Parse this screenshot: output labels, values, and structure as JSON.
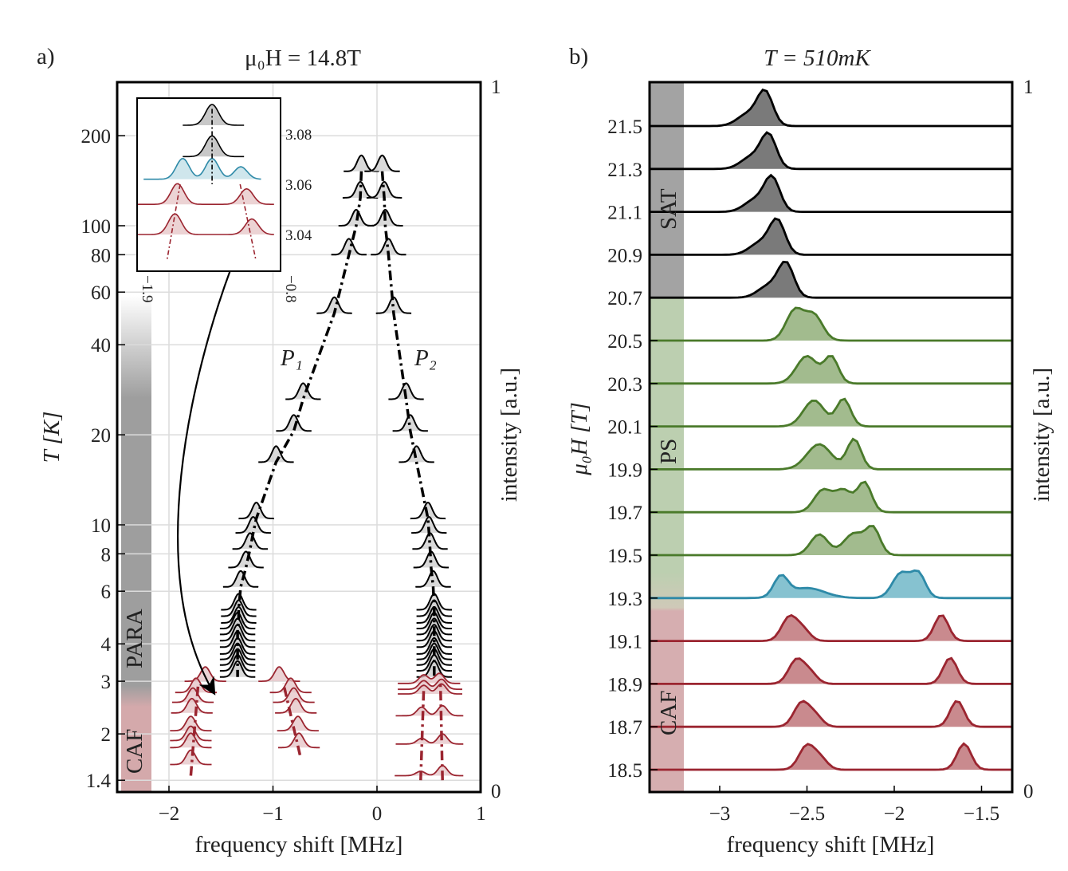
{
  "chart_data": [
    {
      "panel_label": "a)",
      "type": "line",
      "style": "waterfall spectra",
      "title": "μ₀H = 14.8T",
      "xlabel": "frequency shift [MHz]",
      "ylabel": "T [K]",
      "right_ylabel": "intensity [a.u.]",
      "right_ticks": [
        "0",
        "1"
      ],
      "xlim": [
        -2.5,
        1
      ],
      "ylim": [
        1.28,
        302
      ],
      "yscale": "log",
      "grid": true,
      "xticks": [
        -2,
        -1,
        0,
        1
      ],
      "yticks": [
        1.4,
        2,
        3,
        4,
        6,
        8,
        10,
        20,
        40,
        60,
        80,
        100,
        200
      ],
      "phases": [
        {
          "label": "PARA",
          "color": "#9e9e9e"
        },
        {
          "label": "CAF",
          "color": "#d4a9ab"
        }
      ],
      "annotations": [
        "P₁",
        "P₂"
      ],
      "para_color": "#000000",
      "caf_color": "#9b2530",
      "para_spectra": [
        {
          "T": 152,
          "P1": -0.15,
          "P2": 0.05
        },
        {
          "T": 124,
          "P1": -0.16,
          "P2": 0.07
        },
        {
          "T": 100,
          "P1": -0.2,
          "P2": 0.08
        },
        {
          "T": 80,
          "P1": -0.27,
          "P2": 0.11
        },
        {
          "T": 51,
          "P1": -0.41,
          "P2": 0.16
        },
        {
          "T": 26.3,
          "P1": -0.71,
          "P2": 0.28
        },
        {
          "T": 20.6,
          "P1": -0.8,
          "P2": 0.32
        },
        {
          "T": 16.2,
          "P1": -0.97,
          "P2": 0.38
        },
        {
          "T": 10.5,
          "P1": -1.16,
          "P2": 0.49
        },
        {
          "T": 9.4,
          "P1": -1.19,
          "P2": 0.5
        },
        {
          "T": 8.3,
          "P1": -1.22,
          "P2": 0.51
        },
        {
          "T": 7.2,
          "P1": -1.26,
          "P2": 0.52
        },
        {
          "T": 6.2,
          "P1": -1.31,
          "P2": 0.54
        },
        {
          "T": 5.2,
          "P1": -1.33,
          "P2": 0.55
        },
        {
          "T": 4.95,
          "P1": -1.33,
          "P2": 0.55
        },
        {
          "T": 4.7,
          "P1": -1.33,
          "P2": 0.55
        },
        {
          "T": 4.5,
          "P1": -1.34,
          "P2": 0.55
        },
        {
          "T": 4.3,
          "P1": -1.34,
          "P2": 0.55
        },
        {
          "T": 4.1,
          "P1": -1.34,
          "P2": 0.55
        },
        {
          "T": 3.9,
          "P1": -1.34,
          "P2": 0.55
        },
        {
          "T": 3.7,
          "P1": -1.34,
          "P2": 0.55
        },
        {
          "T": 3.55,
          "P1": -1.34,
          "P2": 0.55
        },
        {
          "T": 3.4,
          "P1": -1.34,
          "P2": 0.55
        },
        {
          "T": 3.25,
          "P1": -1.34,
          "P2": 0.55
        },
        {
          "T": 3.1,
          "P1": -1.34,
          "P2": 0.55
        }
      ],
      "caf_spectra": [
        {
          "T": 3.0,
          "peaks": [
            [
              -1.65,
              1
            ],
            [
              -0.94,
              1
            ]
          ]
        },
        {
          "T": 2.75,
          "peaks": [
            [
              -1.74,
              1
            ],
            [
              -0.83,
              1
            ]
          ]
        },
        {
          "T": 2.55,
          "peaks": [
            [
              -1.77,
              1
            ],
            [
              -0.8,
              1
            ]
          ]
        },
        {
          "T": 2.35,
          "peaks": [
            [
              -1.78,
              1
            ],
            [
              -0.78,
              1
            ]
          ]
        },
        {
          "T": 2.05,
          "peaks": [
            [
              -1.79,
              1
            ],
            [
              -0.76,
              1
            ]
          ]
        },
        {
          "T": 1.9,
          "peaks": [
            [
              -1.79,
              1
            ]
          ]
        },
        {
          "T": 1.8,
          "peaks": [
            [
              -1.79,
              1
            ],
            [
              -0.75,
              1
            ]
          ]
        },
        {
          "T": 1.58,
          "peaks": [
            [
              -1.79,
              1
            ]
          ]
        },
        {
          "T": 2.95,
          "peaks": [
            [
              0.45,
              0.6
            ],
            [
              0.6,
              0.7
            ]
          ]
        },
        {
          "T": 2.82,
          "peaks": [
            [
              0.45,
              0.6
            ],
            [
              0.62,
              0.7
            ]
          ]
        },
        {
          "T": 2.72,
          "peaks": [
            [
              0.45,
              0.6
            ],
            [
              0.62,
              0.7
            ]
          ]
        },
        {
          "T": 2.3,
          "peaks": [
            [
              0.43,
              0.6
            ],
            [
              0.63,
              0.7
            ]
          ]
        },
        {
          "T": 1.85,
          "peaks": [
            [
              0.43,
              0.4
            ],
            [
              0.63,
              0.7
            ]
          ]
        },
        {
          "T": 1.45,
          "peaks": [
            [
              0.42,
              0.3
            ],
            [
              0.63,
              0.7
            ]
          ]
        }
      ]
    },
    {
      "panel_label": "inset",
      "type": "line",
      "style": "waterfall spectra",
      "xlim": [
        -1.9,
        -0.8
      ],
      "xticks": [
        -1.9,
        -0.8
      ],
      "ylim": [
        3.03,
        3.095
      ],
      "yticks": [
        3.04,
        3.06,
        3.08
      ],
      "spectra": [
        {
          "T": 3.0835,
          "phase": "PARA",
          "peaks": [
            [
              -1.325,
              1
            ]
          ]
        },
        {
          "T": 3.071,
          "phase": "PARA",
          "peaks": [
            [
              -1.325,
              1
            ]
          ]
        },
        {
          "T": 3.062,
          "phase": "PS",
          "peaks": [
            [
              -1.55,
              1
            ],
            [
              -1.325,
              1
            ],
            [
              -1.105,
              0.6
            ]
          ]
        },
        {
          "T": 3.052,
          "phase": "CAF",
          "peaks": [
            [
              -1.59,
              1
            ],
            [
              -1.06,
              0.75
            ]
          ]
        },
        {
          "T": 3.04,
          "phase": "CAF",
          "peaks": [
            [
              -1.61,
              1
            ],
            [
              -1.02,
              0.75
            ]
          ]
        }
      ]
    },
    {
      "panel_label": "b)",
      "type": "area",
      "style": "waterfall spectra",
      "title": "T = 510mK",
      "xlabel": "frequency shift [MHz]",
      "ylabel": "μ₀H [T]",
      "right_ylabel": "intensity [a.u.]",
      "right_ticks": [
        "0",
        "1"
      ],
      "xlim": [
        -3.4,
        -1.32
      ],
      "xticks": [
        -3,
        -2.5,
        -2,
        -1.5
      ],
      "yticks": [
        18.5,
        18.7,
        18.9,
        19.1,
        19.3,
        19.5,
        19.7,
        19.9,
        20.1,
        20.3,
        20.5,
        20.7,
        20.9,
        21.1,
        21.3,
        21.5
      ],
      "phases": [
        {
          "label": "SAT",
          "color": "#a3a3a3"
        },
        {
          "label": "PS",
          "color": "#bccfb0"
        },
        {
          "label": "CAF",
          "color": "#d6aeb0"
        }
      ],
      "phase_colors": {
        "SAT": {
          "line": "#000000",
          "fill": "#7a7a7a"
        },
        "PS": {
          "line": "#4a7a2a",
          "fill": "#a2bb8e"
        },
        "MIX": {
          "line": "#2e8aa8",
          "fill": "#86c2d0"
        },
        "CAF": {
          "line": "#9b2530",
          "fill": "#c98a8e"
        }
      },
      "spectra": [
        {
          "H": 21.5,
          "phase": "SAT",
          "peaks": [
            [
              -2.74,
              1,
              0.045
            ],
            [
              -2.84,
              0.35,
              0.06
            ]
          ]
        },
        {
          "H": 21.3,
          "phase": "SAT",
          "peaks": [
            [
              -2.72,
              1,
              0.045
            ],
            [
              -2.82,
              0.35,
              0.06
            ]
          ]
        },
        {
          "H": 21.1,
          "phase": "SAT",
          "peaks": [
            [
              -2.7,
              1,
              0.045
            ],
            [
              -2.8,
              0.35,
              0.06
            ]
          ]
        },
        {
          "H": 20.9,
          "phase": "SAT",
          "peaks": [
            [
              -2.67,
              1,
              0.045
            ],
            [
              -2.77,
              0.35,
              0.06
            ]
          ]
        },
        {
          "H": 20.7,
          "phase": "SAT",
          "peaks": [
            [
              -2.62,
              1,
              0.045
            ],
            [
              -2.72,
              0.35,
              0.06
            ]
          ]
        },
        {
          "H": 20.5,
          "phase": "PS",
          "peaks": [
            [
              -2.57,
              0.9,
              0.05
            ],
            [
              -2.46,
              0.75,
              0.05
            ]
          ]
        },
        {
          "H": 20.3,
          "phase": "PS",
          "peaks": [
            [
              -2.5,
              0.82,
              0.06
            ],
            [
              -2.36,
              0.78,
              0.04
            ]
          ]
        },
        {
          "H": 20.1,
          "phase": "PS",
          "peaks": [
            [
              -2.46,
              0.78,
              0.06
            ],
            [
              -2.29,
              0.82,
              0.04
            ]
          ]
        },
        {
          "H": 19.9,
          "phase": "PS",
          "peaks": [
            [
              -2.43,
              0.75,
              0.07
            ],
            [
              -2.23,
              0.9,
              0.04
            ]
          ]
        },
        {
          "H": 19.7,
          "phase": "PS",
          "peaks": [
            [
              -2.41,
              0.65,
              0.05
            ],
            [
              -2.29,
              0.65,
              0.05
            ],
            [
              -2.17,
              0.88,
              0.04
            ]
          ]
        },
        {
          "H": 19.5,
          "phase": "PS",
          "peaks": [
            [
              -2.43,
              0.62,
              0.05
            ],
            [
              -2.23,
              0.65,
              0.06
            ],
            [
              -2.12,
              0.75,
              0.04
            ]
          ]
        },
        {
          "H": 19.3,
          "phase": "MIX",
          "peaks": [
            [
              -2.65,
              0.6,
              0.04
            ],
            [
              -2.5,
              0.3,
              0.1
            ],
            [
              -1.96,
              0.75,
              0.05
            ],
            [
              -1.86,
              0.7,
              0.04
            ]
          ]
        },
        {
          "H": 19.1,
          "phase": "CAF",
          "peaks": [
            [
              -2.6,
              0.72,
              0.045
            ],
            [
              -2.52,
              0.3,
              0.04
            ],
            [
              -1.73,
              0.78,
              0.04
            ]
          ]
        },
        {
          "H": 18.9,
          "phase": "CAF",
          "peaks": [
            [
              -2.56,
              0.72,
              0.045
            ],
            [
              -2.48,
              0.3,
              0.04
            ],
            [
              -1.68,
              0.78,
              0.04
            ]
          ]
        },
        {
          "H": 18.7,
          "phase": "CAF",
          "peaks": [
            [
              -2.53,
              0.72,
              0.045
            ],
            [
              -2.45,
              0.3,
              0.04
            ],
            [
              -1.64,
              0.78,
              0.04
            ]
          ]
        },
        {
          "H": 18.5,
          "phase": "CAF",
          "peaks": [
            [
              -2.5,
              0.72,
              0.045
            ],
            [
              -2.42,
              0.3,
              0.04
            ],
            [
              -1.6,
              0.78,
              0.04
            ]
          ]
        }
      ]
    }
  ]
}
